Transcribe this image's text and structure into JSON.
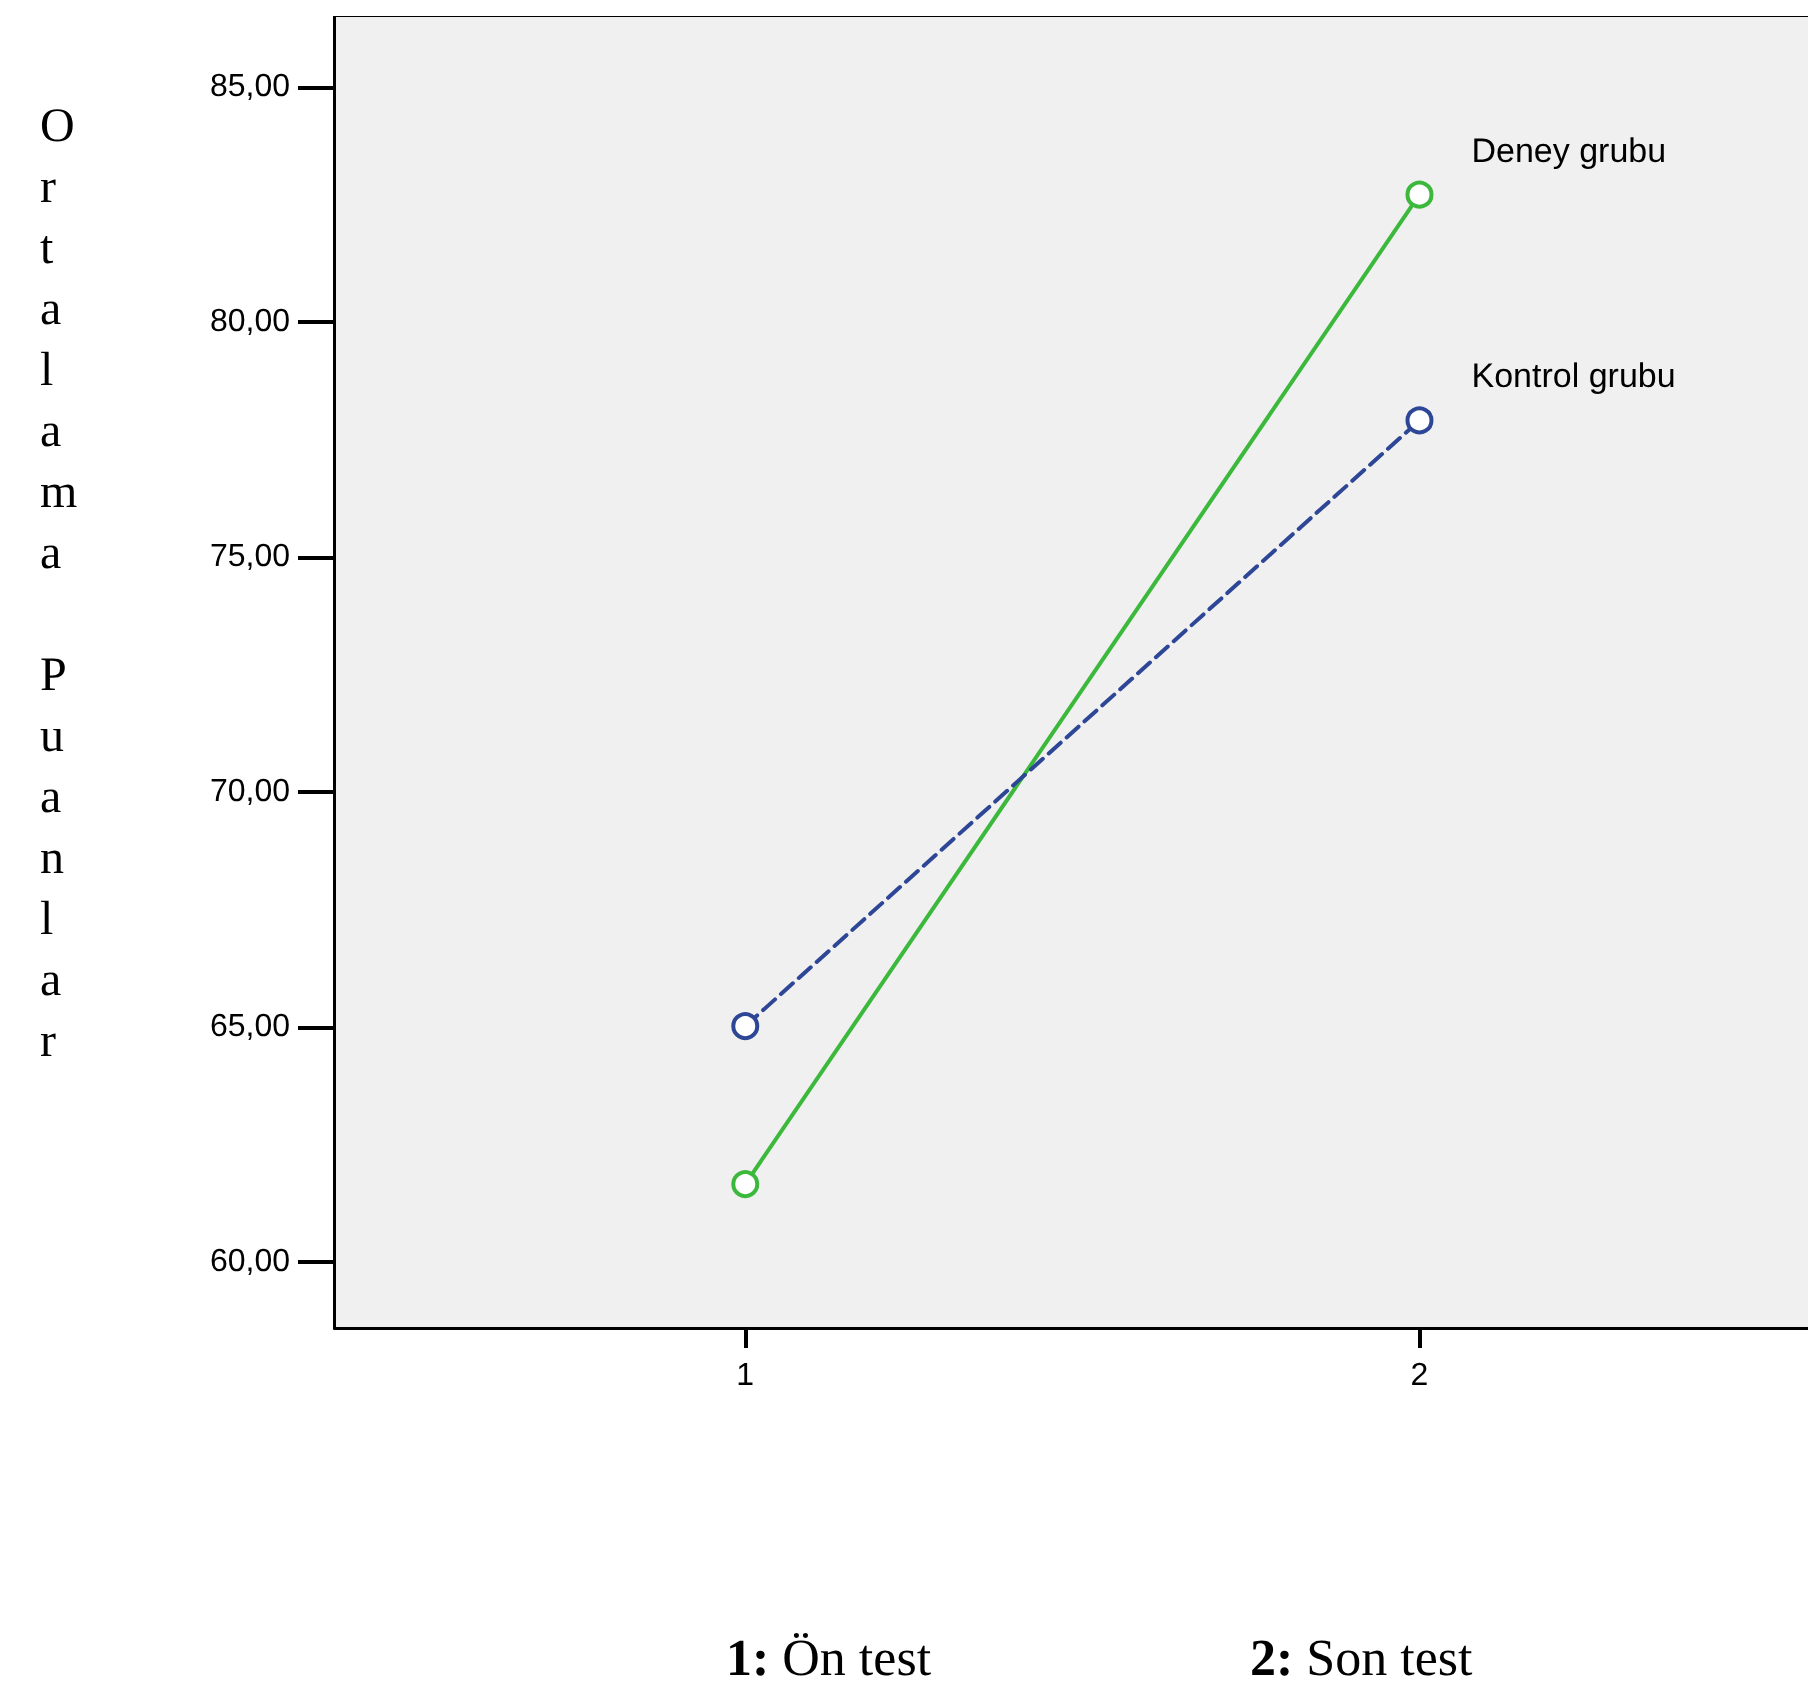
{
  "chart_data": {
    "type": "line",
    "ylabel": "Ortalama Puanlar",
    "x": [
      1,
      2
    ],
    "xlim": [
      0.39,
      2.6
    ],
    "xticks": [
      1,
      2
    ],
    "ylim": [
      58.6,
      86.5
    ],
    "yticks": [
      {
        "value": 60,
        "label": "60,00"
      },
      {
        "value": 65,
        "label": "65,00"
      },
      {
        "value": 70,
        "label": "70,00"
      },
      {
        "value": 75,
        "label": "75,00"
      },
      {
        "value": 80,
        "label": "80,00"
      },
      {
        "value": 85,
        "label": "85,00"
      }
    ],
    "series": [
      {
        "name": "Deney grubu",
        "color": "#3cb93c",
        "values": [
          61.66,
          82.7
        ],
        "line_style": "solid"
      },
      {
        "name": "Kontrol grubu",
        "color": "#2e4696",
        "values": [
          65.02,
          77.9
        ],
        "line_style": "dashed"
      }
    ],
    "marker": "circle",
    "grid": false,
    "legend": false,
    "annotations": [
      "1: Ön test",
      "2: Son test"
    ]
  }
}
